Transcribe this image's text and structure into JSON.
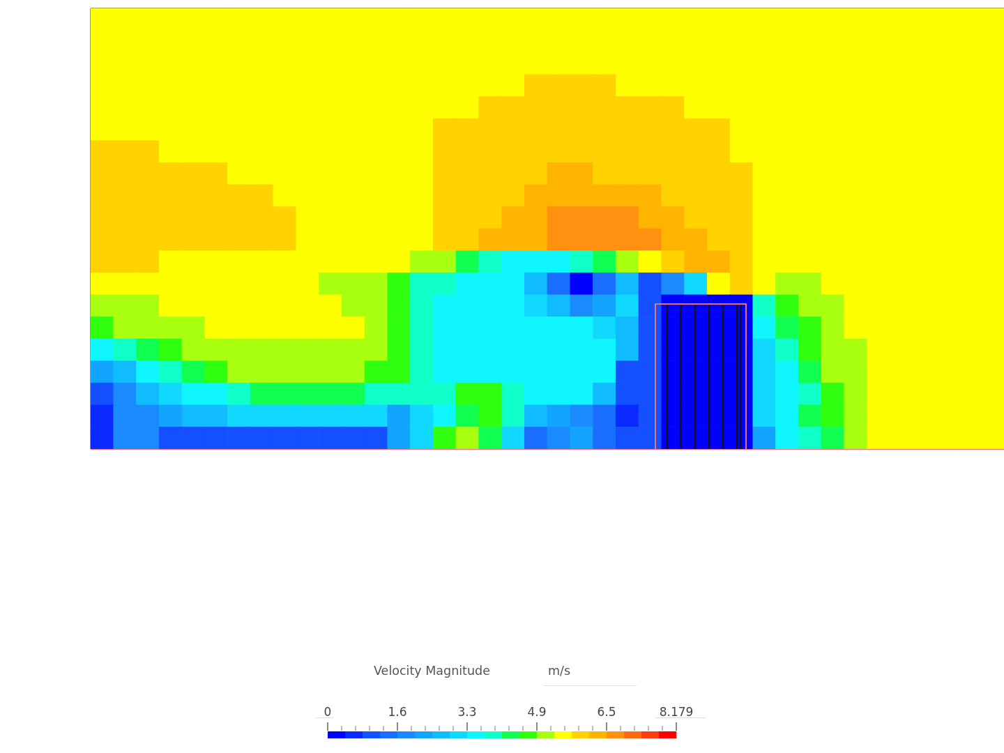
{
  "chart_data": {
    "type": "heatmap",
    "categories": [
      null,
      null,
      null,
      null,
      null,
      null,
      null,
      null,
      null,
      null,
      null,
      null,
      null,
      null,
      null,
      null,
      null,
      null,
      null,
      null,
      null,
      null,
      null,
      null,
      null,
      null,
      null,
      null,
      null,
      null,
      null,
      null,
      null,
      null,
      null,
      null,
      null,
      null,
      null,
      null
    ],
    "y_categories": [
      null,
      null,
      null,
      null,
      null,
      null,
      null,
      null,
      null,
      null,
      null,
      null,
      null,
      null,
      null,
      null,
      null,
      null,
      null,
      null
    ],
    "cells": [
      [
        5.5,
        5.5,
        5.5,
        5.5,
        5.5,
        5.5,
        5.5,
        5.5,
        5.5,
        5.5,
        5.5,
        5.5,
        5.5,
        5.5,
        5.5,
        5.5,
        5.5,
        5.5,
        5.5,
        5.5,
        5.5,
        5.5,
        5.5,
        5.5,
        5.5,
        5.5,
        5.5,
        5.5,
        5.5,
        5.5,
        5.5,
        5.5,
        5.5,
        5.5,
        5.5,
        5.5,
        5.5,
        5.5,
        5.5,
        5.5
      ],
      [
        5.5,
        5.5,
        5.5,
        5.5,
        5.5,
        5.5,
        5.5,
        5.5,
        5.5,
        5.5,
        5.5,
        5.5,
        5.5,
        5.5,
        5.5,
        5.5,
        5.5,
        5.5,
        5.5,
        5.5,
        5.5,
        5.5,
        5.5,
        5.5,
        5.5,
        5.5,
        5.5,
        5.5,
        5.5,
        5.5,
        5.5,
        5.5,
        5.5,
        5.5,
        5.5,
        5.5,
        5.5,
        5.5,
        5.5,
        5.5
      ],
      [
        5.5,
        5.5,
        5.5,
        5.5,
        5.5,
        5.5,
        5.5,
        5.5,
        5.5,
        5.5,
        5.5,
        5.5,
        5.5,
        5.5,
        5.5,
        5.5,
        5.5,
        5.5,
        5.5,
        5.5,
        5.5,
        5.5,
        5.5,
        5.5,
        5.5,
        5.5,
        5.5,
        5.5,
        5.5,
        5.5,
        5.5,
        5.5,
        5.5,
        5.5,
        5.5,
        5.5,
        5.5,
        5.5,
        5.5,
        5.5
      ],
      [
        5.5,
        5.5,
        5.5,
        5.5,
        5.5,
        5.5,
        5.5,
        5.5,
        5.5,
        5.5,
        5.5,
        5.5,
        5.5,
        5.5,
        5.5,
        5.5,
        5.5,
        5.5,
        5.5,
        5.9,
        5.9,
        5.9,
        5.9,
        5.5,
        5.5,
        5.5,
        5.5,
        5.5,
        5.5,
        5.5,
        5.5,
        5.5,
        5.5,
        5.5,
        5.5,
        5.5,
        5.5,
        5.5,
        5.5,
        5.5
      ],
      [
        5.5,
        5.5,
        5.5,
        5.5,
        5.5,
        5.5,
        5.5,
        5.5,
        5.5,
        5.5,
        5.5,
        5.5,
        5.5,
        5.5,
        5.5,
        5.5,
        5.5,
        5.9,
        5.9,
        5.9,
        5.9,
        5.9,
        5.9,
        5.9,
        5.9,
        5.9,
        5.5,
        5.5,
        5.5,
        5.5,
        5.5,
        5.5,
        5.5,
        5.5,
        5.5,
        5.5,
        5.5,
        5.5,
        5.5,
        5.5
      ],
      [
        5.5,
        5.5,
        5.5,
        5.5,
        5.5,
        5.5,
        5.5,
        5.5,
        5.5,
        5.5,
        5.5,
        5.5,
        5.5,
        5.5,
        5.5,
        5.9,
        5.9,
        5.9,
        5.9,
        5.9,
        5.9,
        5.9,
        5.9,
        5.9,
        5.9,
        5.9,
        5.9,
        5.9,
        5.5,
        5.5,
        5.5,
        5.5,
        5.5,
        5.5,
        5.5,
        5.5,
        5.5,
        5.5,
        5.5,
        5.5
      ],
      [
        5.9,
        5.9,
        5.9,
        5.5,
        5.5,
        5.5,
        5.5,
        5.5,
        5.5,
        5.5,
        5.5,
        5.5,
        5.5,
        5.5,
        5.5,
        5.9,
        5.9,
        5.9,
        5.9,
        5.9,
        5.9,
        5.9,
        5.9,
        5.9,
        5.9,
        5.9,
        5.9,
        5.9,
        5.5,
        5.5,
        5.5,
        5.5,
        5.5,
        5.5,
        5.5,
        5.5,
        5.5,
        5.5,
        5.5,
        5.5
      ],
      [
        5.9,
        5.9,
        5.9,
        5.9,
        5.9,
        5.9,
        5.5,
        5.5,
        5.5,
        5.5,
        5.5,
        5.5,
        5.5,
        5.5,
        5.5,
        5.9,
        5.9,
        5.9,
        5.9,
        5.9,
        6.3,
        6.3,
        5.9,
        5.9,
        5.9,
        5.9,
        5.9,
        5.9,
        5.9,
        5.5,
        5.5,
        5.5,
        5.5,
        5.5,
        5.5,
        5.5,
        5.5,
        5.5,
        5.5,
        5.5
      ],
      [
        5.9,
        5.9,
        5.9,
        5.9,
        5.9,
        5.9,
        5.9,
        5.9,
        5.5,
        5.5,
        5.5,
        5.5,
        5.5,
        5.5,
        5.5,
        5.9,
        5.9,
        5.9,
        5.9,
        6.3,
        6.3,
        6.3,
        6.3,
        6.3,
        6.3,
        5.9,
        5.9,
        5.9,
        5.9,
        5.5,
        5.5,
        5.5,
        5.5,
        5.5,
        5.5,
        5.5,
        5.5,
        5.5,
        5.5,
        5.5
      ],
      [
        5.9,
        5.9,
        5.9,
        5.9,
        5.9,
        5.9,
        5.9,
        5.9,
        5.9,
        5.5,
        5.5,
        5.5,
        5.5,
        5.5,
        5.5,
        5.9,
        5.9,
        5.9,
        6.3,
        6.3,
        6.8,
        6.8,
        6.8,
        6.8,
        6.3,
        6.3,
        5.9,
        5.9,
        5.9,
        5.5,
        5.5,
        5.5,
        5.5,
        5.5,
        5.5,
        5.5,
        5.5,
        5.5,
        5.5,
        5.5
      ],
      [
        5.9,
        5.9,
        5.9,
        5.9,
        5.9,
        5.9,
        5.9,
        5.9,
        5.9,
        5.5,
        5.5,
        5.5,
        5.5,
        5.5,
        5.5,
        5.9,
        5.9,
        6.3,
        6.3,
        6.3,
        6.8,
        6.8,
        6.8,
        6.8,
        6.8,
        6.3,
        6.3,
        5.9,
        5.9,
        5.5,
        5.5,
        5.5,
        5.5,
        5.5,
        5.5,
        5.5,
        5.5,
        5.5,
        5.5,
        5.5
      ],
      [
        5.9,
        5.9,
        5.9,
        5.5,
        5.5,
        5.5,
        5.5,
        5.5,
        5.5,
        5.5,
        5.5,
        5.5,
        5.5,
        5.5,
        5.1,
        5.1,
        4.3,
        3.9,
        3.5,
        3.5,
        3.5,
        3.9,
        4.3,
        5.1,
        5.5,
        5.9,
        6.3,
        6.3,
        5.9,
        5.5,
        5.5,
        5.5,
        5.5,
        5.5,
        5.5,
        5.5,
        5.5,
        5.5,
        5.5,
        5.5
      ],
      [
        5.5,
        5.5,
        5.5,
        5.5,
        5.5,
        5.5,
        5.5,
        5.5,
        5.5,
        5.5,
        5.1,
        5.1,
        5.1,
        4.7,
        3.9,
        3.9,
        3.5,
        3.5,
        3.5,
        2.7,
        1.4,
        0.2,
        1.4,
        2.7,
        1.0,
        1.8,
        3.1,
        5.5,
        5.9,
        5.5,
        5.1,
        5.1,
        5.5,
        5.5,
        5.5,
        5.5,
        5.5,
        5.5,
        5.5,
        5.5
      ],
      [
        5.1,
        5.1,
        5.1,
        5.5,
        5.5,
        5.5,
        5.5,
        5.5,
        5.5,
        5.5,
        5.5,
        5.1,
        5.1,
        4.7,
        3.9,
        3.5,
        3.5,
        3.5,
        3.5,
        3.1,
        2.7,
        1.8,
        2.2,
        3.1,
        1.0,
        0.2,
        0.2,
        0.2,
        0.2,
        3.9,
        4.7,
        5.1,
        5.1,
        5.5,
        5.5,
        5.5,
        5.5,
        5.5,
        5.5,
        5.5
      ],
      [
        4.7,
        5.1,
        5.1,
        5.1,
        5.1,
        5.5,
        5.5,
        5.5,
        5.5,
        5.5,
        5.5,
        5.5,
        5.1,
        4.7,
        3.9,
        3.5,
        3.5,
        3.5,
        3.5,
        3.5,
        3.5,
        3.5,
        3.1,
        2.7,
        1.0,
        0.2,
        0.2,
        0.2,
        0.2,
        3.5,
        4.3,
        4.7,
        5.1,
        5.5,
        5.5,
        5.5,
        5.5,
        5.5,
        5.5,
        5.5
      ],
      [
        3.5,
        3.9,
        4.3,
        4.7,
        5.1,
        5.1,
        5.1,
        5.1,
        5.1,
        5.1,
        5.1,
        5.1,
        5.1,
        4.7,
        3.9,
        3.5,
        3.5,
        3.5,
        3.5,
        3.5,
        3.5,
        3.5,
        3.5,
        2.7,
        1.0,
        0.2,
        0.2,
        0.2,
        0.2,
        3.1,
        3.9,
        4.7,
        5.1,
        5.1,
        5.5,
        5.5,
        5.5,
        5.5,
        5.5,
        5.5
      ],
      [
        2.2,
        2.7,
        3.5,
        3.9,
        4.3,
        4.7,
        5.1,
        5.1,
        5.1,
        5.1,
        5.1,
        5.1,
        4.7,
        4.7,
        3.9,
        3.5,
        3.5,
        3.5,
        3.5,
        3.5,
        3.5,
        3.5,
        3.5,
        1.0,
        1.0,
        0.2,
        0.2,
        0.2,
        0.2,
        3.1,
        3.5,
        4.3,
        5.1,
        5.1,
        5.5,
        5.5,
        5.5,
        5.5,
        5.5,
        5.5
      ],
      [
        1.0,
        1.8,
        2.7,
        3.1,
        3.5,
        3.5,
        3.9,
        4.3,
        4.3,
        4.3,
        4.3,
        4.3,
        3.9,
        3.9,
        3.9,
        3.9,
        4.7,
        4.7,
        3.9,
        3.5,
        3.5,
        3.5,
        2.7,
        1.0,
        1.0,
        0.2,
        0.2,
        0.2,
        0.2,
        3.1,
        3.5,
        3.9,
        4.7,
        5.1,
        5.5,
        5.5,
        5.5,
        5.5,
        5.5,
        5.5
      ],
      [
        0.6,
        1.8,
        1.8,
        2.2,
        2.7,
        2.7,
        3.1,
        3.1,
        3.1,
        3.1,
        3.1,
        3.1,
        3.1,
        2.2,
        3.1,
        3.5,
        4.3,
        4.7,
        3.9,
        2.7,
        2.2,
        1.8,
        1.4,
        0.6,
        1.0,
        0.2,
        0.2,
        0.2,
        0.2,
        3.1,
        3.5,
        4.3,
        4.7,
        5.1,
        5.5,
        5.5,
        5.5,
        5.5,
        5.5,
        5.5
      ],
      [
        0.6,
        1.8,
        1.8,
        1.0,
        1.0,
        1.0,
        1.0,
        1.0,
        1.0,
        1.0,
        1.0,
        1.0,
        1.0,
        2.2,
        3.1,
        4.7,
        5.1,
        4.3,
        3.1,
        1.4,
        1.8,
        2.2,
        1.4,
        1.0,
        1.0,
        0.2,
        0.2,
        0.2,
        0.2,
        2.2,
        3.5,
        3.9,
        4.3,
        5.1,
        5.5,
        5.5,
        5.5,
        5.5,
        5.5,
        5.5
      ]
    ],
    "clim": [
      0,
      8.179
    ],
    "cticks": [
      0,
      {
        "value": 0.327,
        "label": null
      },
      {
        "value": 0.654,
        "label": null
      },
      {
        "value": 0.981,
        "label": null
      },
      {
        "value": 1.309,
        "label": null
      },
      {
        "value": 1.636,
        "label": "1.6"
      },
      {
        "value": 1.963,
        "label": null
      },
      {
        "value": 2.29,
        "label": null
      },
      {
        "value": 2.617,
        "label": null
      },
      {
        "value": 2.945,
        "label": null
      },
      {
        "value": 3.272,
        "label": "3.3"
      },
      {
        "value": 3.599,
        "label": null
      },
      {
        "value": 3.926,
        "label": null
      },
      {
        "value": 4.253,
        "label": null
      },
      {
        "value": 4.58,
        "label": null
      },
      {
        "value": 4.907,
        "label": "4.9"
      },
      {
        "value": 5.234,
        "label": null
      },
      {
        "value": 5.562,
        "label": null
      },
      {
        "value": 5.889,
        "label": null
      },
      {
        "value": 6.216,
        "label": null
      },
      {
        "value": 6.543,
        "label": "6.5"
      },
      {
        "value": 6.87,
        "label": null
      },
      {
        "value": 7.197,
        "label": null
      },
      {
        "value": 7.524,
        "label": null
      },
      {
        "value": 7.852,
        "label": null
      },
      8.179
    ],
    "colors": [
      "#0000ff",
      "#0a2aff",
      "#1450ff",
      "#1a6eff",
      "#1a8aff",
      "#12a4ff",
      "#10bcff",
      "#10d8ff",
      "#10f6ff",
      "#10ffc8",
      "#10ff50",
      "#30ff10",
      "#a8ff10",
      "#ffff00",
      "#ffd200",
      "#ffb400",
      "#ff9010",
      "#ff6a10",
      "#ff3c10",
      "#ff0000"
    ],
    "clabel": "Velocity Magnitude",
    "annotations": [
      "m/s"
    ]
  }
}
